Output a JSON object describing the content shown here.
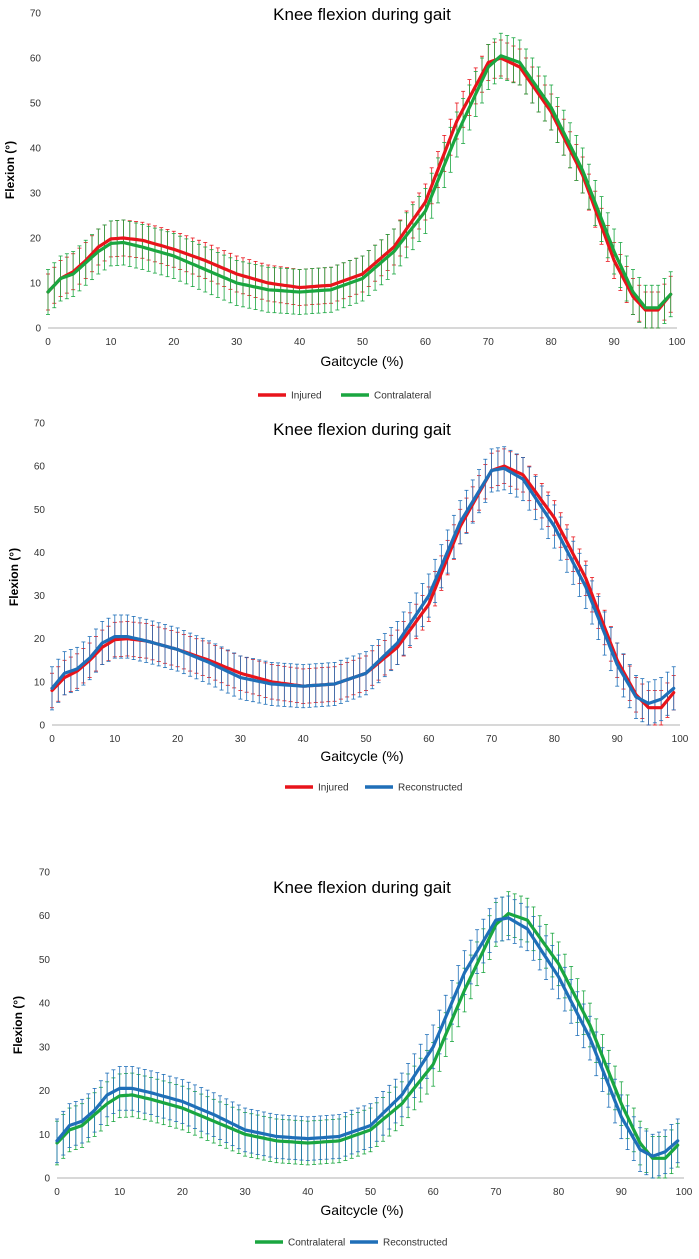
{
  "chart_data": [
    {
      "type": "line",
      "title": "Knee flexion during gait",
      "xlabel": "Gaitcycle (%)",
      "ylabel": "Flexion (°)",
      "xlim": [
        0,
        100
      ],
      "ylim": [
        0,
        70
      ],
      "xticks": [
        "0",
        "10",
        "20",
        "30",
        "40",
        "50",
        "60",
        "70",
        "80",
        "90",
        "100"
      ],
      "yticks": [
        "0",
        "10",
        "20",
        "30",
        "40",
        "50",
        "60",
        "70"
      ],
      "grid": false,
      "legend": "bottom-center",
      "series": [
        {
          "name": "Injured",
          "color": "#e8141b",
          "error": 4,
          "x": [
            0,
            2,
            4,
            6,
            8,
            10,
            12,
            15,
            20,
            25,
            30,
            35,
            40,
            45,
            50,
            55,
            60,
            65,
            70,
            72,
            75,
            80,
            85,
            90,
            93,
            95,
            97,
            99
          ],
          "y": [
            8,
            11,
            12.5,
            15,
            18,
            19.8,
            20,
            19.5,
            17.5,
            15,
            12,
            10,
            9,
            9.5,
            12,
            18,
            28,
            46,
            59,
            60,
            58,
            48,
            34,
            15,
            7,
            4,
            4,
            7.5
          ]
        },
        {
          "name": "Contralateral",
          "color": "#1aa640",
          "error": 5,
          "x": [
            0,
            2,
            4,
            6,
            8,
            10,
            12,
            15,
            20,
            25,
            30,
            35,
            40,
            45,
            50,
            55,
            60,
            65,
            70,
            72,
            75,
            80,
            85,
            90,
            93,
            95,
            97,
            99
          ],
          "y": [
            8,
            11,
            12,
            14.5,
            17,
            18.8,
            19,
            18,
            16,
            13,
            10,
            8.5,
            8,
            8.5,
            11,
            17,
            26,
            43,
            58,
            60.5,
            59,
            49,
            35,
            17,
            8,
            4.5,
            4.5,
            7.5
          ]
        }
      ]
    },
    {
      "type": "line",
      "title": "Knee flexion during gait",
      "xlabel": "Gaitcycle (%)",
      "ylabel": "Flexion (°)",
      "xlim": [
        0,
        100
      ],
      "ylim": [
        0,
        70
      ],
      "xticks": [
        "0",
        "10",
        "20",
        "30",
        "40",
        "50",
        "60",
        "70",
        "80",
        "90",
        "100"
      ],
      "yticks": [
        "0",
        "10",
        "20",
        "30",
        "40",
        "50",
        "60",
        "70"
      ],
      "grid": false,
      "legend": "bottom-center",
      "series": [
        {
          "name": "Injured",
          "color": "#e8141b",
          "error": 4,
          "x": [
            0,
            2,
            4,
            6,
            8,
            10,
            12,
            15,
            20,
            25,
            30,
            35,
            40,
            45,
            50,
            55,
            60,
            65,
            70,
            72,
            75,
            80,
            85,
            90,
            93,
            95,
            97,
            99
          ],
          "y": [
            8,
            11,
            12.5,
            15,
            18,
            19.8,
            20,
            19.5,
            17.5,
            15,
            12,
            10,
            9,
            9.5,
            12,
            18,
            28,
            46,
            59,
            60,
            58,
            48,
            34,
            15,
            7,
            4,
            4,
            7.5
          ]
        },
        {
          "name": "Reconstructed",
          "color": "#1f6fb8",
          "error": 5,
          "x": [
            0,
            2,
            4,
            6,
            8,
            10,
            12,
            15,
            20,
            25,
            30,
            35,
            40,
            45,
            50,
            55,
            60,
            65,
            70,
            72,
            75,
            80,
            85,
            90,
            93,
            95,
            97,
            99
          ],
          "y": [
            8.5,
            12,
            13,
            15.5,
            19,
            20.5,
            20.5,
            19.5,
            17.5,
            14.5,
            11,
            9.5,
            9,
            9.5,
            12,
            19,
            30,
            47,
            59,
            59.5,
            57,
            46,
            32,
            14,
            6.5,
            5,
            6,
            8.5
          ]
        }
      ]
    },
    {
      "type": "line",
      "title": "Knee flexion during gait",
      "xlabel": "Gaitcycle (%)",
      "ylabel": "Flexion (°)",
      "xlim": [
        0,
        100
      ],
      "ylim": [
        0,
        70
      ],
      "xticks": [
        "0",
        "10",
        "20",
        "30",
        "40",
        "50",
        "60",
        "70",
        "80",
        "90",
        "100"
      ],
      "yticks": [
        "0",
        "10",
        "20",
        "30",
        "40",
        "50",
        "60",
        "70"
      ],
      "grid": false,
      "legend": "bottom-center",
      "series": [
        {
          "name": "Contralateral",
          "color": "#1aa640",
          "error": 5,
          "x": [
            0,
            2,
            4,
            6,
            8,
            10,
            12,
            15,
            20,
            25,
            30,
            35,
            40,
            45,
            50,
            55,
            60,
            65,
            70,
            72,
            75,
            80,
            85,
            90,
            93,
            95,
            97,
            99
          ],
          "y": [
            8,
            11,
            12,
            14.5,
            17,
            18.8,
            19,
            18,
            16,
            13,
            10,
            8.5,
            8,
            8.5,
            11,
            17,
            26,
            43,
            58,
            60.5,
            59,
            49,
            35,
            17,
            8,
            4.5,
            4.5,
            7.5
          ]
        },
        {
          "name": "Reconstructed",
          "color": "#1f6fb8",
          "error": 5,
          "x": [
            0,
            2,
            4,
            6,
            8,
            10,
            12,
            15,
            20,
            25,
            30,
            35,
            40,
            45,
            50,
            55,
            60,
            65,
            70,
            72,
            75,
            80,
            85,
            90,
            93,
            95,
            97,
            99
          ],
          "y": [
            8.5,
            12,
            13,
            15.5,
            19,
            20.5,
            20.5,
            19.5,
            17.5,
            14.5,
            11,
            9.5,
            9,
            9.5,
            12,
            19,
            30,
            47,
            59,
            59.5,
            57,
            46,
            32,
            14,
            6.5,
            5,
            6,
            8.5
          ]
        }
      ]
    }
  ]
}
